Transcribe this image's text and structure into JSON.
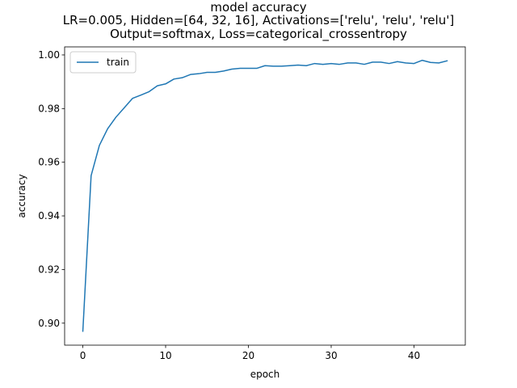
{
  "chart_data": {
    "type": "line",
    "title_lines": [
      "model accuracy",
      "LR=0.005, Hidden=[64, 32, 16], Activations=['relu', 'relu', 'relu']",
      "Output=softmax, Loss=categorical_crossentropy"
    ],
    "xlabel": "epoch",
    "ylabel": "accuracy",
    "xlim": [
      -2.2,
      46.2
    ],
    "ylim": [
      0.8918,
      1.003
    ],
    "xticks": [
      0,
      10,
      20,
      30,
      40
    ],
    "xtick_labels": [
      "0",
      "10",
      "20",
      "30",
      "40"
    ],
    "yticks": [
      0.9,
      0.92,
      0.94,
      0.96,
      0.98,
      1.0
    ],
    "ytick_labels": [
      "0.90",
      "0.92",
      "0.94",
      "0.96",
      "0.98",
      "1.00"
    ],
    "grid": false,
    "legend_position": "upper-left",
    "series": [
      {
        "name": "train",
        "color": "#1f77b4",
        "x": [
          0,
          1,
          2,
          3,
          4,
          5,
          6,
          7,
          8,
          9,
          10,
          11,
          12,
          13,
          14,
          15,
          16,
          17,
          18,
          19,
          20,
          21,
          22,
          23,
          24,
          25,
          26,
          27,
          28,
          29,
          30,
          31,
          32,
          33,
          34,
          35,
          36,
          37,
          38,
          39,
          40,
          41,
          42,
          43,
          44
        ],
        "y": [
          0.897,
          0.955,
          0.9663,
          0.9725,
          0.9768,
          0.9803,
          0.9838,
          0.985,
          0.9863,
          0.9885,
          0.9892,
          0.991,
          0.9915,
          0.9927,
          0.993,
          0.9935,
          0.9935,
          0.994,
          0.9947,
          0.995,
          0.995,
          0.995,
          0.996,
          0.9958,
          0.9958,
          0.996,
          0.9962,
          0.996,
          0.9968,
          0.9965,
          0.9968,
          0.9965,
          0.997,
          0.997,
          0.9965,
          0.9973,
          0.9973,
          0.9968,
          0.9975,
          0.997,
          0.9968,
          0.998,
          0.9972,
          0.997,
          0.9978
        ]
      }
    ]
  }
}
